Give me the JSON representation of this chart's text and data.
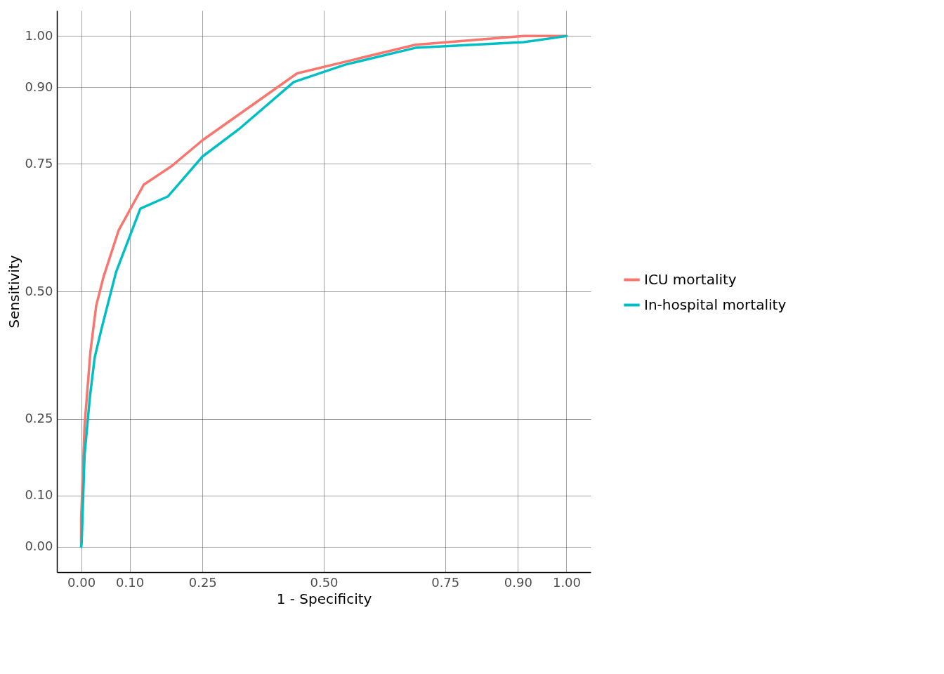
{
  "chart_data": {
    "type": "line",
    "xlabel": "1 - Specificity",
    "ylabel": "Sensitivity",
    "xlim": [
      -0.05,
      1.05
    ],
    "ylim": [
      -0.05,
      1.05
    ],
    "xticks": [
      {
        "value": 0,
        "label": "0.00"
      },
      {
        "value": 0.1,
        "label": "0.10"
      },
      0.25,
      {
        "value": 0.5,
        "label": "0.50"
      },
      0.75,
      {
        "value": 0.9,
        "label": "0.90"
      },
      {
        "value": 1,
        "label": "1.00"
      }
    ],
    "yticks": [
      {
        "value": 0,
        "label": "0.00"
      },
      {
        "value": 0.1,
        "label": "0.10"
      },
      0.25,
      {
        "value": 0.5,
        "label": "0.50"
      },
      0.75,
      {
        "value": 0.9,
        "label": "0.90"
      },
      {
        "value": 1,
        "label": "1.00"
      }
    ],
    "grid": true,
    "legend": "right",
    "line_style": "solid",
    "series": [
      {
        "name": "ICU mortality",
        "color": "#f8766d",
        "x": [
          0,
          0,
          0.007,
          0.019,
          0.031,
          0.046,
          0.077,
          0.129,
          0.186,
          0.25,
          0.445,
          0.689,
          0.912,
          1
        ],
        "values": [
          0,
          0.054,
          0.236,
          0.381,
          0.472,
          0.528,
          0.619,
          0.709,
          0.745,
          0.796,
          0.927,
          0.983,
          1,
          1
        ]
      },
      {
        "name": "In-hospital mortality",
        "color": "#00bfc4",
        "x": [
          0,
          0.001,
          0.007,
          0.018,
          0.028,
          0.042,
          0.072,
          0.122,
          0.179,
          0.25,
          0.328,
          0.438,
          0.544,
          0.689,
          0.912,
          1
        ],
        "values": [
          0,
          0.008,
          0.18,
          0.293,
          0.371,
          0.427,
          0.538,
          0.662,
          0.686,
          0.764,
          0.82,
          0.91,
          0.944,
          0.977,
          0.988,
          1
        ]
      }
    ]
  }
}
